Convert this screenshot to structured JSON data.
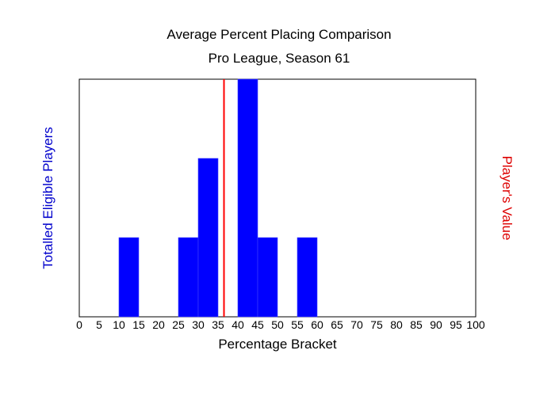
{
  "chart_data": {
    "type": "bar",
    "title": "Average Percent Placing Comparison",
    "subtitle": "Pro League, Season 61",
    "xlabel": "Percentage Bracket",
    "ylabel": "Totalled Eligible Players",
    "y2label": "Player's Value",
    "xlim": [
      0,
      100
    ],
    "ylim": [
      0,
      3
    ],
    "xticks": [
      "0",
      "5",
      "10",
      "15",
      "20",
      "25",
      "30",
      "35",
      "40",
      "45",
      "50",
      "55",
      "60",
      "65",
      "70",
      "75",
      "80",
      "85",
      "90",
      "95",
      "100"
    ],
    "bins": [
      {
        "start": 10,
        "end": 15,
        "count": 1
      },
      {
        "start": 25,
        "end": 30,
        "count": 1
      },
      {
        "start": 30,
        "end": 35,
        "count": 2
      },
      {
        "start": 40,
        "end": 45,
        "count": 3
      },
      {
        "start": 45,
        "end": 50,
        "count": 1
      },
      {
        "start": 55,
        "end": 60,
        "count": 1
      }
    ],
    "player_value": 36.5,
    "colors": {
      "bars": "#0000ff",
      "player_line": "#ff0000",
      "ylabel": "#0000cc",
      "y2label": "#dd0000"
    }
  }
}
